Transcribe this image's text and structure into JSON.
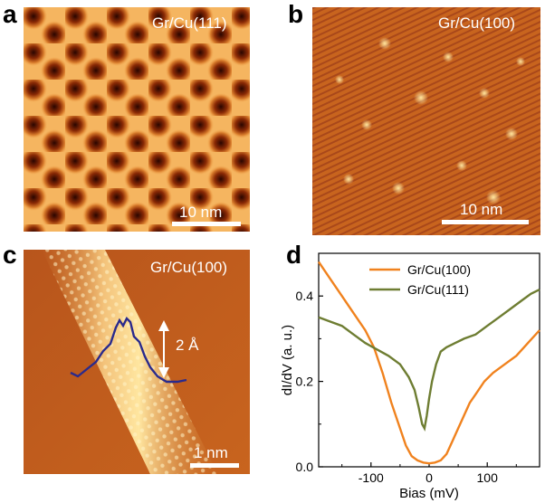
{
  "panels": {
    "a": {
      "letter": "a",
      "label": "Gr/Cu(111)",
      "scale": "10 nm"
    },
    "b": {
      "letter": "b",
      "label": "Gr/Cu(100)",
      "scale": "10 nm"
    },
    "c": {
      "letter": "c",
      "label": "Gr/Cu(100)",
      "scale": "1 nm",
      "height_label": "2 Å"
    },
    "d": {
      "letter": "d"
    }
  },
  "colors": {
    "stm_dark": "#3a0a00",
    "stm_mid": "#c8641e",
    "stm_light": "#ffe6a0",
    "cu100_line": "#f0821e",
    "cu111_line": "#6e7d32",
    "profile_line": "#2a2a8c"
  },
  "chart_data": {
    "type": "line",
    "xlabel": "Bias (mV)",
    "ylabel": "dI/dV (a. u.)",
    "xlim": [
      -190,
      190
    ],
    "ylim": [
      0,
      0.5
    ],
    "xticks": [
      -100,
      0,
      100
    ],
    "xtick_labels": [
      "-100",
      "0",
      "100"
    ],
    "yticks": [
      0.0,
      0.2,
      0.4
    ],
    "ytick_labels": [
      "0.0",
      "0.2",
      "0.4"
    ],
    "legend_position": "top-center",
    "series": [
      {
        "name": "Gr/Cu(100)",
        "color": "#f0821e",
        "x": [
          -190,
          -170,
          -150,
          -130,
          -110,
          -95,
          -80,
          -65,
          -50,
          -40,
          -30,
          -20,
          -10,
          0,
          10,
          20,
          30,
          40,
          50,
          60,
          70,
          80,
          95,
          110,
          130,
          150,
          170,
          190
        ],
        "y": [
          0.48,
          0.44,
          0.4,
          0.36,
          0.32,
          0.28,
          0.22,
          0.15,
          0.09,
          0.05,
          0.025,
          0.015,
          0.01,
          0.008,
          0.01,
          0.015,
          0.03,
          0.06,
          0.09,
          0.12,
          0.15,
          0.17,
          0.2,
          0.22,
          0.24,
          0.26,
          0.29,
          0.32
        ]
      },
      {
        "name": "Gr/Cu(111)",
        "color": "#6e7d32",
        "x": [
          -190,
          -170,
          -150,
          -130,
          -110,
          -90,
          -70,
          -50,
          -35,
          -25,
          -18,
          -12,
          -8,
          -4,
          0,
          5,
          12,
          20,
          30,
          45,
          60,
          80,
          100,
          120,
          140,
          160,
          175,
          190
        ],
        "y": [
          0.35,
          0.34,
          0.33,
          0.31,
          0.29,
          0.275,
          0.26,
          0.24,
          0.21,
          0.18,
          0.14,
          0.1,
          0.09,
          0.12,
          0.16,
          0.2,
          0.24,
          0.27,
          0.28,
          0.29,
          0.3,
          0.31,
          0.33,
          0.35,
          0.37,
          0.39,
          0.405,
          0.415
        ]
      }
    ]
  }
}
